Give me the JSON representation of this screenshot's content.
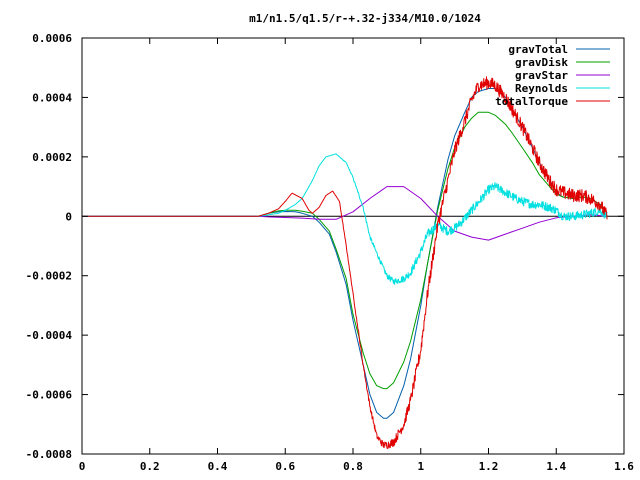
{
  "chart_data": {
    "type": "line",
    "title": "m1/n1.5/q1.5/r-+.32-j334/M10.0/1024",
    "xlabel": "",
    "ylabel": "",
    "xlim": [
      0,
      1.6
    ],
    "ylim": [
      -0.0008,
      0.0006
    ],
    "xticks": [
      0,
      0.2,
      0.4,
      0.6,
      0.8,
      1,
      1.2,
      1.4,
      1.6
    ],
    "xtick_labels": [
      "0",
      "0.2",
      "0.4",
      "0.6",
      "0.8",
      "1",
      "1.2",
      "1.4",
      "1.6"
    ],
    "yticks": [
      -0.0008,
      -0.0006,
      -0.0004,
      -0.0002,
      0,
      0.0002,
      0.0004,
      0.0006
    ],
    "ytick_labels": [
      "-0.0008",
      "-0.0006",
      "-0.0004",
      "-0.0002",
      "0",
      "0.0002",
      "0.0004",
      "0.0006"
    ],
    "grid": false,
    "legend_position": "top-right",
    "series": [
      {
        "name": "gravTotal",
        "color": "#0060ad",
        "x": [
          0.52,
          0.55,
          0.58,
          0.6,
          0.63,
          0.65,
          0.68,
          0.7,
          0.73,
          0.75,
          0.78,
          0.8,
          0.83,
          0.85,
          0.87,
          0.89,
          0.9,
          0.92,
          0.95,
          0.97,
          1.0,
          1.02,
          1.05,
          1.08,
          1.1,
          1.13,
          1.15,
          1.17,
          1.2,
          1.22,
          1.25,
          1.27,
          1.3,
          1.33,
          1.35,
          1.38,
          1.4,
          1.42,
          1.45,
          1.48,
          1.5,
          1.53,
          1.55
        ],
        "values": [
          0.0,
          1e-05,
          1.5e-05,
          1.6e-05,
          1.5e-05,
          1e-05,
          0.0,
          -2e-05,
          -6e-05,
          -0.00012,
          -0.00023,
          -0.00035,
          -0.0005,
          -0.0006,
          -0.00066,
          -0.00068,
          -0.00068,
          -0.00066,
          -0.00057,
          -0.00048,
          -0.0003,
          -0.00016,
          3e-05,
          0.00019,
          0.00027,
          0.00035,
          0.0004,
          0.00042,
          0.00043,
          0.00043,
          0.0004,
          0.00036,
          0.0003,
          0.00023,
          0.00018,
          0.00012,
          8e-05,
          6.5e-05,
          6e-05,
          6.5e-05,
          6e-05,
          4e-05,
          0.0
        ]
      },
      {
        "name": "gravDisk",
        "color": "#009e00",
        "x": [
          0.52,
          0.55,
          0.58,
          0.6,
          0.63,
          0.65,
          0.68,
          0.7,
          0.73,
          0.75,
          0.78,
          0.8,
          0.83,
          0.85,
          0.87,
          0.89,
          0.9,
          0.92,
          0.95,
          0.97,
          1.0,
          1.02,
          1.05,
          1.08,
          1.1,
          1.13,
          1.15,
          1.17,
          1.2,
          1.22,
          1.25,
          1.27,
          1.3,
          1.33,
          1.35,
          1.38,
          1.4,
          1.42,
          1.45,
          1.48,
          1.5,
          1.53,
          1.55
        ],
        "values": [
          0.0,
          1e-05,
          1.8e-05,
          2e-05,
          2e-05,
          1.7e-05,
          1e-05,
          -1e-05,
          -5e-05,
          -0.00011,
          -0.00021,
          -0.00033,
          -0.00046,
          -0.00053,
          -0.00057,
          -0.00058,
          -0.00058,
          -0.00056,
          -0.00049,
          -0.00042,
          -0.00028,
          -0.00016,
          2e-05,
          0.00016,
          0.00023,
          0.0003,
          0.00033,
          0.00035,
          0.00035,
          0.00034,
          0.00031,
          0.00028,
          0.00023,
          0.00018,
          0.00014,
          0.0001,
          7.5e-05,
          6.5e-05,
          6e-05,
          6.5e-05,
          6e-05,
          4e-05,
          0.0
        ]
      },
      {
        "name": "gravStar",
        "color": "#9400d3",
        "x": [
          0.52,
          0.55,
          0.6,
          0.65,
          0.7,
          0.75,
          0.8,
          0.85,
          0.9,
          0.95,
          1.0,
          1.05,
          1.1,
          1.15,
          1.2,
          1.25,
          1.3,
          1.35,
          1.4,
          1.45,
          1.5,
          1.55
        ],
        "values": [
          0.0,
          -2e-06,
          -4e-06,
          -6e-06,
          -1e-05,
          -1e-05,
          1.5e-05,
          6e-05,
          0.0001,
          0.0001,
          6e-05,
          0.0,
          -5e-05,
          -7e-05,
          -8e-05,
          -6e-05,
          -4e-05,
          -2e-05,
          -5e-06,
          0.0,
          5e-06,
          0.0
        ]
      },
      {
        "name": "Reynolds",
        "color": "#00e0e0",
        "noise": 1.5e-05,
        "x": [
          0.52,
          0.55,
          0.58,
          0.6,
          0.63,
          0.65,
          0.68,
          0.7,
          0.72,
          0.75,
          0.78,
          0.8,
          0.83,
          0.85,
          0.88,
          0.9,
          0.92,
          0.95,
          0.97,
          1.0,
          1.02,
          1.05,
          1.08,
          1.1,
          1.12,
          1.15,
          1.18,
          1.2,
          1.22,
          1.25,
          1.28,
          1.3,
          1.33,
          1.35,
          1.38,
          1.4,
          1.42,
          1.45,
          1.48,
          1.5,
          1.53,
          1.55
        ],
        "values": [
          0.0,
          5e-06,
          1e-05,
          2e-05,
          4e-05,
          6e-05,
          0.00012,
          0.00017,
          0.0002,
          0.00021,
          0.00018,
          0.00013,
          3e-05,
          -7e-05,
          -0.00015,
          -0.0002,
          -0.00022,
          -0.00021,
          -0.00019,
          -0.00012,
          -6e-05,
          -3e-05,
          -5e-05,
          -4e-05,
          -2e-05,
          2e-05,
          6e-05,
          9e-05,
          0.0001,
          8e-05,
          6e-05,
          5e-05,
          4e-05,
          4e-05,
          3e-05,
          2e-05,
          0.0,
          0.0,
          5e-06,
          1e-05,
          2e-05,
          0.0
        ]
      },
      {
        "name": "totalTorque",
        "color": "#e00000",
        "noise": 2.2e-05,
        "x": [
          0.52,
          0.55,
          0.58,
          0.6,
          0.62,
          0.65,
          0.67,
          0.68,
          0.7,
          0.72,
          0.74,
          0.76,
          0.78,
          0.8,
          0.83,
          0.85,
          0.87,
          0.89,
          0.9,
          0.92,
          0.95,
          0.97,
          1.0,
          1.02,
          1.05,
          1.08,
          1.1,
          1.13,
          1.15,
          1.17,
          1.2,
          1.22,
          1.25,
          1.27,
          1.3,
          1.33,
          1.35,
          1.38,
          1.4,
          1.42,
          1.45,
          1.48,
          1.5,
          1.53,
          1.55
        ],
        "values": [
          0.0,
          1e-05,
          2.5e-05,
          5e-05,
          7.8e-05,
          6e-05,
          2e-05,
          1e-05,
          3e-05,
          7e-05,
          8.5e-05,
          5e-05,
          -0.0001,
          -0.00026,
          -0.0005,
          -0.00064,
          -0.00074,
          -0.00077,
          -0.00077,
          -0.00076,
          -0.0007,
          -0.00062,
          -0.00045,
          -0.00026,
          -3e-05,
          0.00012,
          0.00022,
          0.00032,
          0.00039,
          0.00044,
          0.00045,
          0.00044,
          0.0004,
          0.00036,
          0.0003,
          0.00023,
          0.00018,
          0.00012,
          9e-05,
          8e-05,
          7e-05,
          7e-05,
          6e-05,
          4e-05,
          0.0
        ]
      }
    ]
  }
}
